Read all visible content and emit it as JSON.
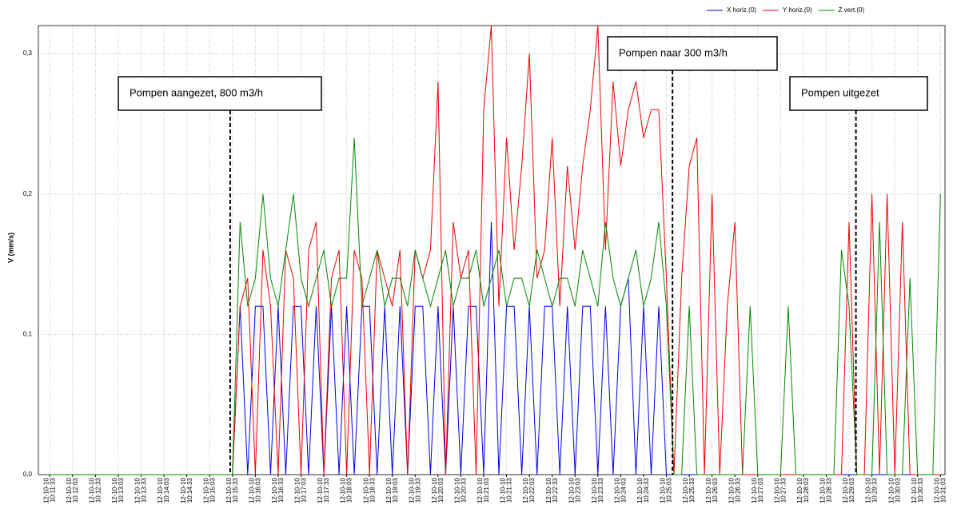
{
  "chart_data": {
    "type": "line",
    "y_label": "V (mm/s)",
    "x": [
      "10:11:33",
      "10:15:33",
      "10:15:43",
      "10:15:53",
      "10:16:03",
      "10:16:13",
      "10:16:23",
      "10:16:33",
      "10:16:43",
      "10:16:53",
      "10:17:03",
      "10:17:13",
      "10:17:23",
      "10:17:33",
      "10:17:43",
      "10:17:53",
      "10:18:03",
      "10:18:13",
      "10:18:23",
      "10:18:33",
      "10:18:43",
      "10:18:53",
      "10:19:03",
      "10:19:13",
      "10:19:23",
      "10:19:33",
      "10:19:43",
      "10:19:53",
      "10:20:03",
      "10:20:13",
      "10:20:23",
      "10:20:33",
      "10:20:43",
      "10:20:53",
      "10:21:03",
      "10:21:13",
      "10:21:23",
      "10:21:33",
      "10:21:43",
      "10:21:53",
      "10:22:03",
      "10:22:13",
      "10:22:23",
      "10:22:33",
      "10:22:43",
      "10:22:53",
      "10:23:03",
      "10:23:13",
      "10:23:23",
      "10:23:33",
      "10:23:43",
      "10:23:53",
      "10:24:03",
      "10:24:13",
      "10:24:23",
      "10:24:33",
      "10:24:43",
      "10:24:53",
      "10:25:03",
      "10:25:13",
      "10:25:23",
      "10:25:33",
      "10:25:43",
      "10:25:53",
      "10:26:03",
      "10:26:13",
      "10:26:23",
      "10:26:33",
      "10:26:43",
      "10:26:53",
      "10:27:03",
      "10:27:13",
      "10:27:23",
      "10:27:33",
      "10:27:43",
      "10:27:53",
      "10:28:03",
      "10:28:13",
      "10:28:23",
      "10:28:33",
      "10:28:43",
      "10:28:53",
      "10:29:03",
      "10:29:13",
      "10:29:23",
      "10:29:33",
      "10:29:43",
      "10:29:53",
      "10:30:03",
      "10:30:13",
      "10:30:23",
      "10:30:33",
      "10:30:43",
      "10:30:53",
      "10:31:03"
    ],
    "series": [
      {
        "name": "X horiz.(0)",
        "color": "#0000e0",
        "values": [
          0,
          0,
          0.12,
          0,
          0.12,
          0.12,
          0,
          0.12,
          0,
          0.12,
          0.12,
          0,
          0.12,
          0,
          0.12,
          0,
          0.12,
          0,
          0.12,
          0.12,
          0,
          0.12,
          0,
          0.12,
          0,
          0.12,
          0.12,
          0,
          0.12,
          0,
          0.12,
          0,
          0.12,
          0.12,
          0,
          0.18,
          0,
          0.12,
          0.12,
          0,
          0.12,
          0,
          0.12,
          0.12,
          0,
          0.12,
          0,
          0.12,
          0.12,
          0,
          0.12,
          0,
          0.12,
          0.14,
          0,
          0.12,
          0,
          0.12,
          0,
          0,
          0,
          0,
          0,
          0,
          0,
          0,
          0,
          0,
          0,
          0,
          0,
          0,
          0,
          0,
          0,
          0,
          0,
          0,
          0,
          0,
          0,
          0,
          0,
          0,
          0,
          0,
          0,
          0,
          0,
          0,
          0,
          0,
          0,
          0,
          0
        ]
      },
      {
        "name": "Y horiz.(0)",
        "color": "#ee0000",
        "values": [
          0,
          0,
          0.12,
          0.14,
          0,
          0.16,
          0.12,
          0,
          0.16,
          0.14,
          0,
          0.16,
          0.18,
          0,
          0.14,
          0.16,
          0,
          0.16,
          0.14,
          0,
          0.16,
          0.14,
          0.12,
          0.16,
          0,
          0.16,
          0.14,
          0.16,
          0.28,
          0,
          0.18,
          0.14,
          0.16,
          0,
          0.26,
          0.32,
          0.12,
          0.24,
          0.16,
          0.22,
          0.3,
          0.14,
          0.16,
          0.24,
          0.12,
          0.22,
          0.16,
          0.22,
          0.26,
          0.32,
          0.16,
          0.28,
          0.22,
          0.26,
          0.28,
          0.24,
          0.26,
          0.26,
          0.14,
          0,
          0.14,
          0.22,
          0.24,
          0,
          0.2,
          0,
          0.12,
          0.18,
          0,
          0,
          0,
          0,
          0,
          0,
          0,
          0,
          0,
          0,
          0,
          0,
          0,
          0,
          0.18,
          0,
          0,
          0.2,
          0,
          0.2,
          0,
          0.18,
          0,
          0,
          0,
          0,
          0
        ]
      },
      {
        "name": "Z vert.(0)",
        "color": "#008800",
        "values": [
          0,
          0,
          0.18,
          0.12,
          0.14,
          0.2,
          0.14,
          0.12,
          0.16,
          0.2,
          0.14,
          0.12,
          0.14,
          0.16,
          0.12,
          0.14,
          0.14,
          0.24,
          0.12,
          0.14,
          0.16,
          0.12,
          0.14,
          0.14,
          0.12,
          0.16,
          0.14,
          0.12,
          0.14,
          0.16,
          0.12,
          0.14,
          0.14,
          0.16,
          0.12,
          0.14,
          0.16,
          0.12,
          0.14,
          0.14,
          0.12,
          0.16,
          0.14,
          0.12,
          0.14,
          0.14,
          0.12,
          0.16,
          0.14,
          0.12,
          0.18,
          0.14,
          0.12,
          0.14,
          0.16,
          0.12,
          0.14,
          0.18,
          0.12,
          0,
          0,
          0.12,
          0,
          0,
          0,
          0,
          0,
          0,
          0,
          0.12,
          0,
          0,
          0,
          0,
          0.12,
          0,
          0,
          0,
          0,
          0,
          0,
          0.16,
          0.12,
          0,
          0,
          0,
          0.18,
          0,
          0,
          0,
          0.14,
          0,
          0,
          0,
          0.2
        ]
      }
    ],
    "xlim": [
      "10:11:18",
      "10:31:09"
    ],
    "xticks": [
      {
        "date": "12-10-10",
        "time": "10:11:33"
      },
      {
        "date": "12-10-10",
        "time": "10:12:03"
      },
      {
        "date": "12-10-10",
        "time": "10:12:33"
      },
      {
        "date": "12-10-10",
        "time": "10:13:03"
      },
      {
        "date": "12-10-10",
        "time": "10:13:33"
      },
      {
        "date": "12-10-10",
        "time": "10:14:03"
      },
      {
        "date": "12-10-10",
        "time": "10:14:33"
      },
      {
        "date": "12-10-10",
        "time": "10:15:03"
      },
      {
        "date": "12-10-10",
        "time": "10:15:33"
      },
      {
        "date": "12-10-10",
        "time": "10:16:03"
      },
      {
        "date": "12-10-10",
        "time": "10:16:33"
      },
      {
        "date": "12-10-10",
        "time": "10:17:03"
      },
      {
        "date": "12-10-10",
        "time": "10:17:33"
      },
      {
        "date": "12-10-10",
        "time": "10:18:03"
      },
      {
        "date": "12-10-10",
        "time": "10:18:33"
      },
      {
        "date": "12-10-10",
        "time": "10:19:03"
      },
      {
        "date": "12-10-10",
        "time": "10:19:33"
      },
      {
        "date": "12-10-10",
        "time": "10:20:03"
      },
      {
        "date": "12-10-10",
        "time": "10:20:33"
      },
      {
        "date": "12-10-10",
        "time": "10:21:03"
      },
      {
        "date": "12-10-10",
        "time": "10:21:33"
      },
      {
        "date": "12-10-10",
        "time": "10:22:03"
      },
      {
        "date": "12-10-10",
        "time": "10:22:33"
      },
      {
        "date": "12-10-10",
        "time": "10:23:03"
      },
      {
        "date": "12-10-10",
        "time": "10:23:33"
      },
      {
        "date": "12-10-10",
        "time": "10:24:03"
      },
      {
        "date": "12-10-10",
        "time": "10:24:33"
      },
      {
        "date": "12-10-10",
        "time": "10:25:03"
      },
      {
        "date": "12-10-10",
        "time": "10:25:33"
      },
      {
        "date": "12-10-10",
        "time": "10:26:03"
      },
      {
        "date": "12-10-10",
        "time": "10:26:33"
      },
      {
        "date": "12-10-10",
        "time": "10:27:03"
      },
      {
        "date": "12-10-10",
        "time": "10:27:33"
      },
      {
        "date": "12-10-10",
        "time": "10:28:03"
      },
      {
        "date": "12-10-10",
        "time": "10:28:33"
      },
      {
        "date": "12-10-10",
        "time": "10:29:03"
      },
      {
        "date": "12-10-10",
        "time": "10:29:33"
      },
      {
        "date": "12-10-10",
        "time": "10:30:03"
      },
      {
        "date": "12-10-10",
        "time": "10:30:33"
      },
      {
        "date": "12-10-10",
        "time": "10:31:03"
      }
    ],
    "ylim": [
      0,
      0.32
    ],
    "yticks": [
      {
        "value": 0,
        "label": "0,0"
      },
      {
        "value": 0.1,
        "label": "0,1"
      },
      {
        "value": 0.2,
        "label": "0,2"
      },
      {
        "value": 0.3,
        "label": "0,3"
      }
    ],
    "grid": true,
    "legend": "top-right",
    "annotations": [
      {
        "text": "Pompen aangezet, 800 m3/h",
        "x": "10:15:30"
      },
      {
        "text": "Pompen naar 300 m3/h",
        "x": "10:25:11"
      },
      {
        "text": "Pompen uitgezet",
        "x": "10:29:12"
      }
    ]
  }
}
